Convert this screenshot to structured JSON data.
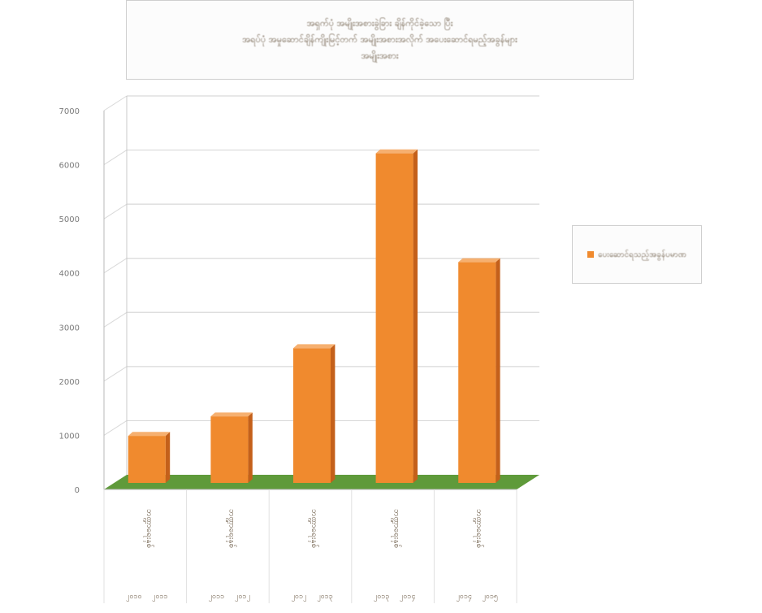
{
  "chart_data": {
    "type": "bar",
    "title_lines": [
      "အရှက်ပုံ အမျိုးအစားခွဲခြား ချိန်ကိုင်ခဲ့သော ပြီး",
      "အရပ်ပုံ အမှုဆောင်ချိန်ကျိုးမြင့်တက် အမျိုးအစားအလိုက် အပေးဆောင်ရမည့်အခွန်များ",
      "အမျိုးအစား"
    ],
    "legend_entries": [
      "ပေးဆောင်ရသည့်အခွန်ပမာဏ"
    ],
    "y_ticks": [
      "0",
      "1000",
      "2000",
      "3000",
      "4000",
      "5000",
      "6000",
      "7000"
    ],
    "ylim": [
      0,
      7000
    ],
    "categories": [
      "ဘဏ္ဍာရေးနှစ်",
      "ဘဏ္ဍာရေးနှစ်",
      "ဘဏ္ဍာရေးနှစ်",
      "ဘဏ္ဍာရေးနှစ်",
      "ဘဏ္ဍာရေးနှစ်"
    ],
    "periods": [
      [
        "၂၀၁၀",
        "၂၀၁၁"
      ],
      [
        "၂၀၁၁",
        "၂၀၁၂"
      ],
      [
        "၂၀၁၂",
        "၂၀၁၃"
      ],
      [
        "၂၀၁၃",
        "၂၀၁၄"
      ],
      [
        "၂၀၁၄",
        "၂၀၁၅"
      ]
    ],
    "series": [
      {
        "name": "ပေးဆောင်ရသည့်အခွန်ပမာဏ",
        "values": [
          870,
          1230,
          2490,
          6090,
          4080
        ]
      }
    ],
    "colors": {
      "bar_front": "#f08a2e",
      "bar_side": "#c4601a",
      "bar_top": "#f6b070",
      "floor": "#5f9a3a",
      "grid": "#d9d9d9"
    },
    "grid": true,
    "legend_position": "right"
  }
}
